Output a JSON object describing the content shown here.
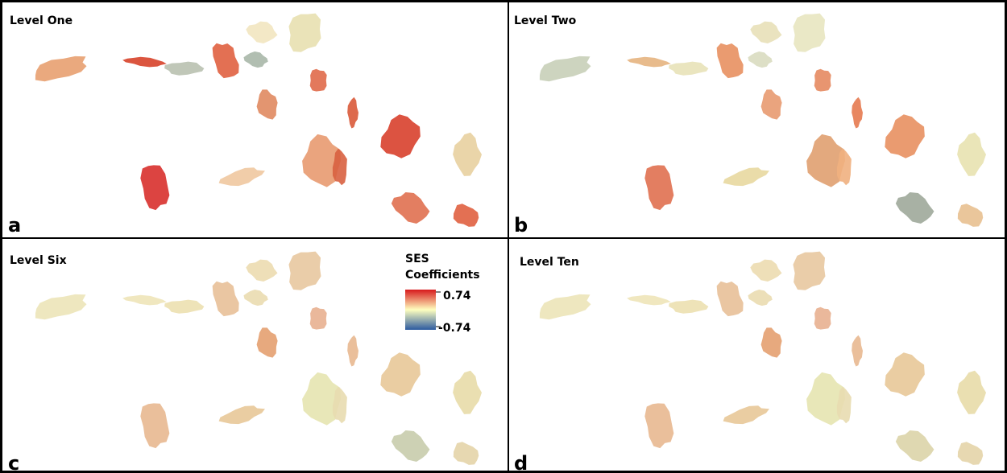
{
  "panels": [
    {
      "title": "Level One",
      "letter": "a"
    },
    {
      "title": "Level Two",
      "letter": "b"
    },
    {
      "title": "Level Six",
      "letter": "c"
    },
    {
      "title": "Level Ten",
      "letter": "d"
    }
  ],
  "legend": {
    "title": [
      "SES",
      "Coefficients"
    ],
    "max": 0.74,
    "min": -0.74
  }
}
